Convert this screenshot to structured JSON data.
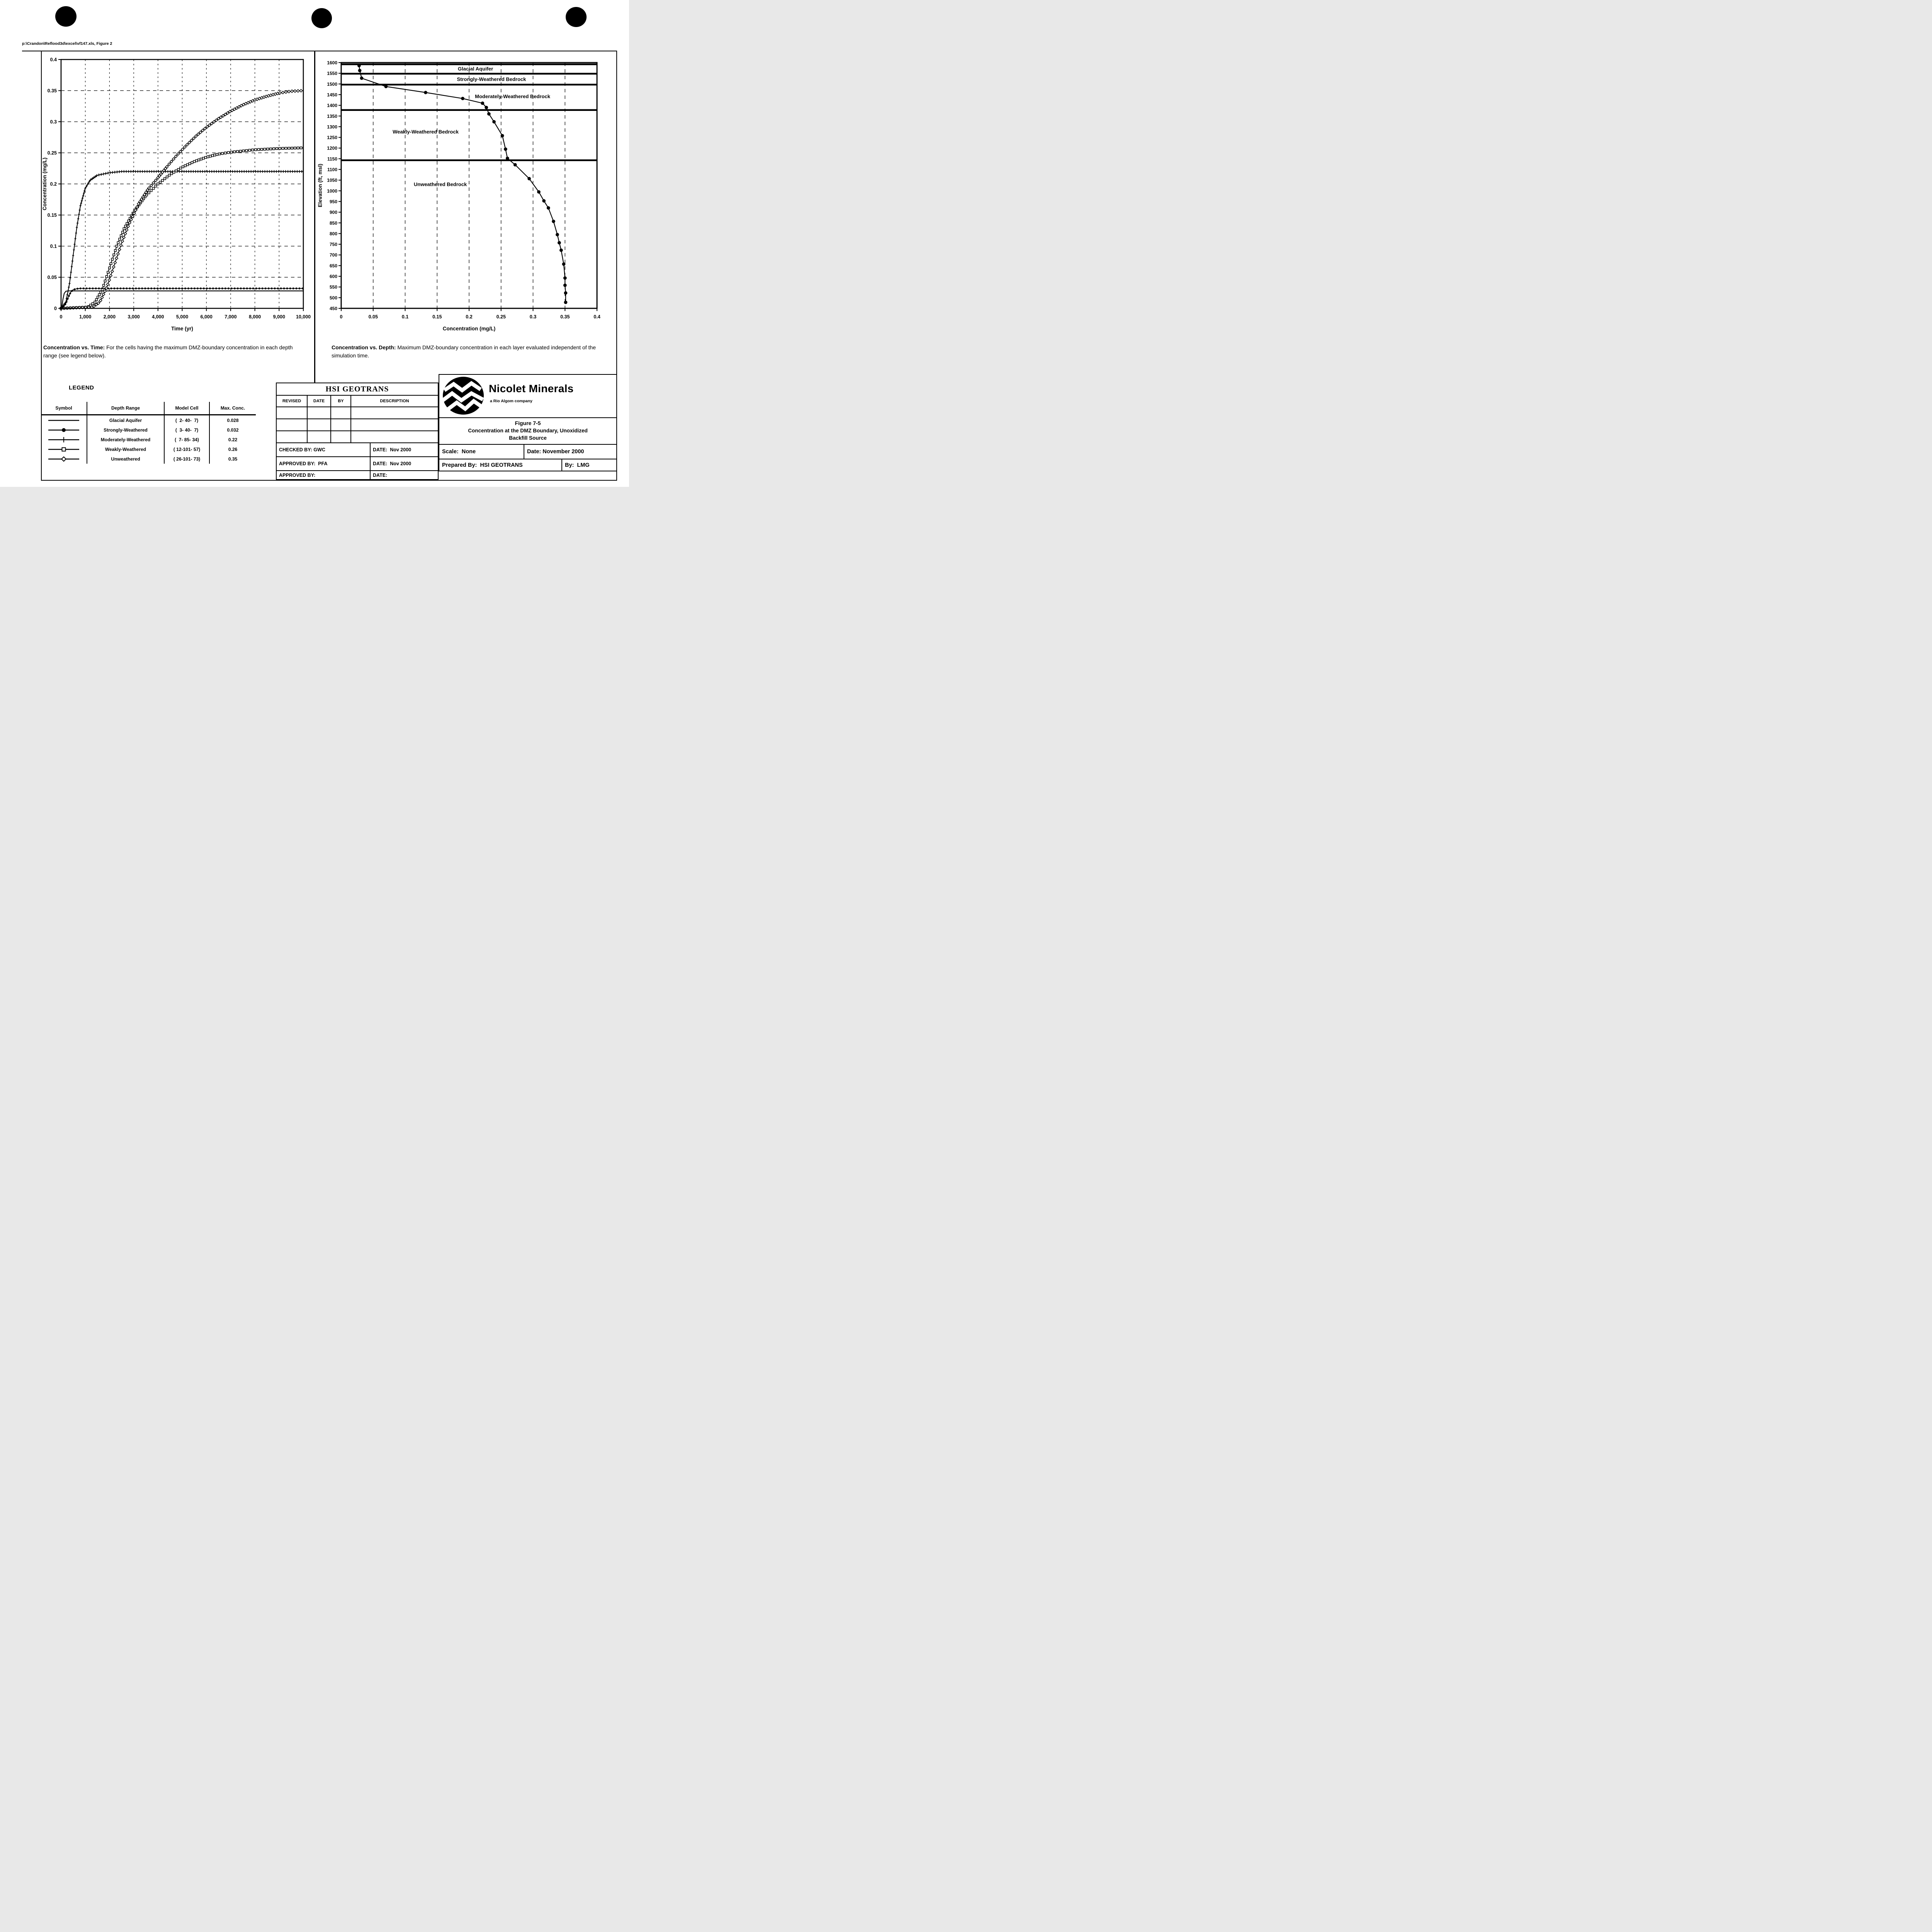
{
  "page": {
    "path_header": "p:\\Crandon\\Reflood3d\\excel\\vf147.xls, Figure 2"
  },
  "captions": {
    "left_lead": "Concentration vs. Time:",
    "left_rest": "  For the cells having the maximum DMZ-boundary concentration in each depth range (see legend below).",
    "right_lead": "Concentration vs. Depth:",
    "right_rest": "  Maximum DMZ-boundary concentration in each layer evaluated independent of the simulation time."
  },
  "chart_data": [
    {
      "type": "line",
      "title": "Concentration vs. Time",
      "xlabel": "Time (yr)",
      "ylabel": "Concentration (mg/L)",
      "xlim": [
        0,
        10000
      ],
      "ylim": [
        0,
        0.4
      ],
      "grid": "dashed",
      "x_ticks": [
        {
          "v": 0,
          "t": "0"
        },
        {
          "v": 1000,
          "t": "1,000"
        },
        {
          "v": 2000,
          "t": "2,000"
        },
        {
          "v": 3000,
          "t": "3,000"
        },
        {
          "v": 4000,
          "t": "4,000"
        },
        {
          "v": 5000,
          "t": "5,000"
        },
        {
          "v": 6000,
          "t": "6,000"
        },
        {
          "v": 7000,
          "t": "7,000"
        },
        {
          "v": 8000,
          "t": "8,000"
        },
        {
          "v": 9000,
          "t": "9,000"
        },
        {
          "v": 10000,
          "t": "10,000"
        }
      ],
      "y_ticks": [
        {
          "v": 0,
          "t": "0"
        },
        {
          "v": 0.05,
          "t": "0.05"
        },
        {
          "v": 0.1,
          "t": "0.1"
        },
        {
          "v": 0.15,
          "t": "0.15"
        },
        {
          "v": 0.2,
          "t": "0.2"
        },
        {
          "v": 0.25,
          "t": "0.25"
        },
        {
          "v": 0.3,
          "t": "0.3"
        },
        {
          "v": 0.35,
          "t": "0.35"
        },
        {
          "v": 0.4,
          "t": "0.4"
        }
      ],
      "series": [
        {
          "name": "Glacial Aquifer",
          "marker": "none",
          "max_conc": 0.028,
          "points": [
            [
              0,
              0
            ],
            [
              40,
              0.004
            ],
            [
              80,
              0.015
            ],
            [
              130,
              0.024
            ],
            [
              200,
              0.0275
            ],
            [
              300,
              0.028
            ],
            [
              1000,
              0.028
            ],
            [
              5000,
              0.028
            ],
            [
              10000,
              0.028
            ]
          ]
        },
        {
          "name": "Strongly-Weathered",
          "marker": "circle-filled",
          "max_conc": 0.032,
          "points": [
            [
              0,
              0
            ],
            [
              100,
              0.002
            ],
            [
              200,
              0.008
            ],
            [
              300,
              0.018
            ],
            [
              400,
              0.026
            ],
            [
              500,
              0.03
            ],
            [
              650,
              0.0315
            ],
            [
              800,
              0.032
            ],
            [
              5000,
              0.032
            ],
            [
              10000,
              0.032
            ]
          ]
        },
        {
          "name": "Moderately-Weathered",
          "marker": "plus",
          "max_conc": 0.22,
          "points": [
            [
              0,
              0
            ],
            [
              200,
              0.01
            ],
            [
              350,
              0.04
            ],
            [
              500,
              0.085
            ],
            [
              650,
              0.13
            ],
            [
              800,
              0.165
            ],
            [
              1000,
              0.193
            ],
            [
              1200,
              0.206
            ],
            [
              1500,
              0.214
            ],
            [
              2000,
              0.218
            ],
            [
              2500,
              0.22
            ],
            [
              6000,
              0.22
            ],
            [
              10000,
              0.22
            ]
          ]
        },
        {
          "name": "Weakly-Weathered",
          "marker": "square-open",
          "max_conc": 0.26,
          "points": [
            [
              0,
              0
            ],
            [
              1100,
              0.002
            ],
            [
              1400,
              0.01
            ],
            [
              1700,
              0.03
            ],
            [
              2000,
              0.065
            ],
            [
              2300,
              0.1
            ],
            [
              2600,
              0.128
            ],
            [
              3000,
              0.155
            ],
            [
              3500,
              0.181
            ],
            [
              4000,
              0.2
            ],
            [
              4500,
              0.215
            ],
            [
              5000,
              0.227
            ],
            [
              5500,
              0.236
            ],
            [
              6000,
              0.243
            ],
            [
              6500,
              0.248
            ],
            [
              7000,
              0.251
            ],
            [
              7500,
              0.253
            ],
            [
              8000,
              0.255
            ],
            [
              9000,
              0.257
            ],
            [
              10000,
              0.258
            ]
          ]
        },
        {
          "name": "Unweathered",
          "marker": "diamond-open",
          "max_conc": 0.35,
          "points": [
            [
              0,
              0
            ],
            [
              1300,
              0.002
            ],
            [
              1600,
              0.01
            ],
            [
              1900,
              0.035
            ],
            [
              2200,
              0.07
            ],
            [
              2500,
              0.105
            ],
            [
              2800,
              0.135
            ],
            [
              3200,
              0.168
            ],
            [
              3600,
              0.192
            ],
            [
              4000,
              0.21
            ],
            [
              4400,
              0.229
            ],
            [
              4800,
              0.247
            ],
            [
              5200,
              0.263
            ],
            [
              5600,
              0.278
            ],
            [
              6000,
              0.291
            ],
            [
              6500,
              0.305
            ],
            [
              7000,
              0.317
            ],
            [
              7500,
              0.327
            ],
            [
              8000,
              0.335
            ],
            [
              8500,
              0.341
            ],
            [
              9000,
              0.346
            ],
            [
              9500,
              0.349
            ],
            [
              10000,
              0.35
            ]
          ]
        }
      ]
    },
    {
      "type": "scatter",
      "title": "Concentration vs. Depth",
      "xlabel": "Concentration (mg/L)",
      "ylabel": "Elevation (ft, msl)",
      "xlim": [
        0,
        0.4
      ],
      "ylim": [
        450,
        1600
      ],
      "grid": "dashed-vertical",
      "x_ticks": [
        {
          "v": 0,
          "t": "0"
        },
        {
          "v": 0.05,
          "t": "0.05"
        },
        {
          "v": 0.1,
          "t": "0.1"
        },
        {
          "v": 0.15,
          "t": "0.15"
        },
        {
          "v": 0.2,
          "t": "0.2"
        },
        {
          "v": 0.25,
          "t": "0.25"
        },
        {
          "v": 0.3,
          "t": "0.3"
        },
        {
          "v": 0.35,
          "t": "0.35"
        },
        {
          "v": 0.4,
          "t": "0.4"
        }
      ],
      "y_ticks": [
        1600,
        1550,
        1500,
        1450,
        1400,
        1350,
        1300,
        1250,
        1200,
        1150,
        1100,
        1050,
        1000,
        950,
        900,
        850,
        800,
        750,
        700,
        650,
        600,
        550,
        500,
        450
      ],
      "layer_boundaries": [
        1592,
        1548,
        1497,
        1378,
        1143
      ],
      "layer_labels": [
        {
          "text": "Glacial Aquifer",
          "x": 0.21,
          "y": 1571
        },
        {
          "text": "Strongly-Weathered Bedrock",
          "x": 0.235,
          "y": 1522
        },
        {
          "text": "Moderately-Weathered Bedrock",
          "x": 0.268,
          "y": 1442
        },
        {
          "text": "Weakly-Weathered Bedrock",
          "x": 0.132,
          "y": 1276
        },
        {
          "text": "Unweathered Bedrock",
          "x": 0.155,
          "y": 1030
        }
      ],
      "series": [
        {
          "name": "Maximum DMZ-boundary concentration",
          "marker": "circle-filled",
          "points": [
            [
              0.028,
              1586
            ],
            [
              0.029,
              1563
            ],
            [
              0.032,
              1527
            ],
            [
              0.07,
              1488
            ],
            [
              0.132,
              1460
            ],
            [
              0.19,
              1432
            ],
            [
              0.221,
              1410
            ],
            [
              0.227,
              1390
            ],
            [
              0.231,
              1360
            ],
            [
              0.239,
              1323
            ],
            [
              0.252,
              1258
            ],
            [
              0.257,
              1195
            ],
            [
              0.26,
              1152
            ],
            [
              0.272,
              1122
            ],
            [
              0.294,
              1057
            ],
            [
              0.309,
              995
            ],
            [
              0.317,
              953
            ],
            [
              0.324,
              920
            ],
            [
              0.332,
              857
            ],
            [
              0.338,
              795
            ],
            [
              0.341,
              757
            ],
            [
              0.344,
              722
            ],
            [
              0.348,
              657
            ],
            [
              0.35,
              592
            ],
            [
              0.35,
              558
            ],
            [
              0.351,
              522
            ],
            [
              0.351,
              478
            ]
          ]
        }
      ]
    }
  ],
  "legend": {
    "title": "LEGEND",
    "headers": [
      "Symbol",
      "Depth Range",
      "Model Cell",
      "Max. Conc."
    ],
    "rows": [
      {
        "symbol": "line",
        "depth": "Glacial Aquifer",
        "cell": "(  2- 40-  7)",
        "max": "0.028"
      },
      {
        "symbol": "circle-filled",
        "depth": "Strongly-Weathered",
        "cell": "(  3- 40-  7)",
        "max": "0.032"
      },
      {
        "symbol": "plus",
        "depth": "Moderately-Weathered",
        "cell": "(  7- 85- 34)",
        "max": "0.22"
      },
      {
        "symbol": "square-open",
        "depth": "Weakly-Weathered",
        "cell": "( 12-101- 57)",
        "max": "0.26"
      },
      {
        "symbol": "diamond-open",
        "depth": "Unweathered",
        "cell": "( 26-101- 73)",
        "max": "0.35"
      }
    ]
  },
  "revision_block": {
    "company": "HSI GEOTRANS",
    "headers": [
      "REVISED",
      "DATE",
      "BY",
      "DESCRIPTION"
    ],
    "empty_rows": 3,
    "sign_rows": [
      {
        "left": "CHECKED BY: GWC",
        "right": "DATE:  Nov 2000"
      },
      {
        "left": "APPROVED BY:  PFA",
        "right": "DATE:  Nov 2000"
      },
      {
        "left": "APPROVED BY:",
        "right": "DATE:"
      }
    ]
  },
  "title_block": {
    "company": "Nicolet Minerals",
    "tagline": "a Rio Algom company",
    "figure_no": "Figure 7-5",
    "figure_title_line1": "Concentration at the DMZ Boundary,  Unoxidized",
    "figure_title_line2": "Backfill Source",
    "scale_label": "Scale:  None",
    "date_label": "Date: November 2000",
    "prepared_label": "Prepared By:  HSI GEOTRANS",
    "by_label": "By:  LMG"
  }
}
